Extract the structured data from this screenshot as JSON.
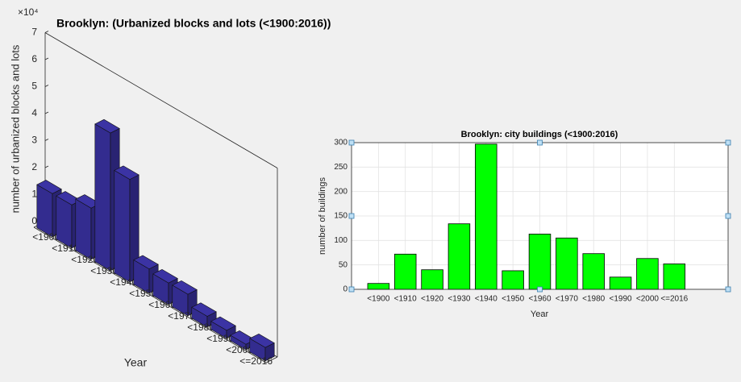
{
  "chart_data": [
    {
      "type": "bar3d",
      "title": "Brooklyn: (Urbanized blocks and lots (<1900:2016))",
      "x_label": "Year",
      "y_label": "number of urbanized blocks and lots",
      "y_exponent": "×10⁴",
      "categories": [
        "<1900",
        "<1910",
        "<1920",
        "<1930",
        "<1940",
        "<1950",
        "<1960",
        "<1970",
        "<1980",
        "<1990",
        "<2000",
        "<=2016"
      ],
      "values": [
        1.6,
        1.6,
        1.9,
        5.1,
        3.8,
        0.9,
        0.8,
        0.8,
        0.4,
        0.3,
        0.2,
        0.5
      ],
      "color": "#332c8f",
      "ylim": [
        0,
        7
      ],
      "yticks": [
        0,
        1,
        2,
        3,
        4,
        5,
        6,
        7
      ]
    },
    {
      "type": "bar",
      "title": "Brooklyn: city buildings (<1900:2016)",
      "x_label": "Year",
      "y_label": "number of buildings",
      "categories": [
        "<1900",
        "<1910",
        "<1920",
        "<1930",
        "<1940",
        "<1950",
        "<1960",
        "<1970",
        "<1980",
        "<1990",
        "<2000",
        "<=2016"
      ],
      "values": [
        12,
        72,
        40,
        134,
        297,
        38,
        113,
        105,
        73,
        25,
        63,
        52
      ],
      "color": "#00ff00",
      "xlim": [
        0,
        14
      ],
      "ylim": [
        0,
        300
      ],
      "yticks": [
        0,
        50,
        100,
        150,
        200,
        250,
        300
      ],
      "grid": true
    }
  ]
}
